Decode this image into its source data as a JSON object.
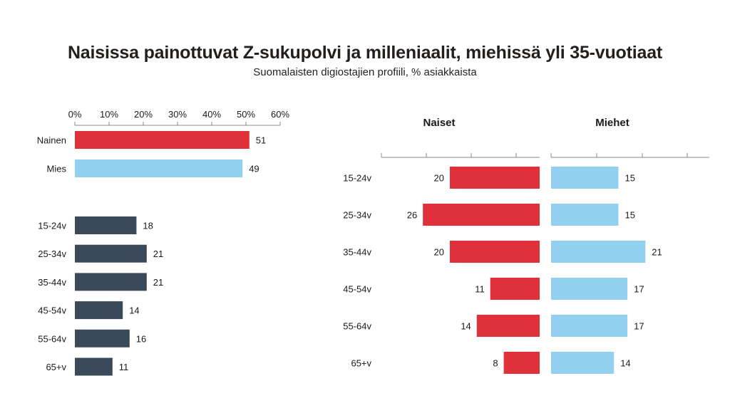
{
  "header": {
    "title": "Naisissa painottuvat Z-sukupolvi ja milleniaalit, miehissä yli 35-vuotiaat",
    "subtitle": "Suomalaisten digiostajien profiili, % asiakkaista"
  },
  "colors": {
    "red": "#e0303a",
    "lightblue": "#92d0f0",
    "dark": "#3a4a5a",
    "axis": "#888888"
  },
  "chart_data": [
    {
      "type": "bar",
      "orientation": "horizontal",
      "categories": [
        "Nainen",
        "Mies"
      ],
      "values": [
        51,
        49
      ],
      "colors": [
        "#e0303a",
        "#92d0f0"
      ],
      "xlim": [
        0,
        60
      ],
      "xticks": [
        "0%",
        "10%",
        "20%",
        "30%",
        "40%",
        "50%",
        "60%"
      ]
    },
    {
      "type": "bar",
      "orientation": "horizontal",
      "categories": [
        "15-24v",
        "25-34v",
        "35-44v",
        "45-54v",
        "55-64v",
        "65+v"
      ],
      "values": [
        18,
        21,
        21,
        14,
        16,
        11
      ],
      "color": "#3a4a5a",
      "xlim": [
        0,
        60
      ]
    },
    {
      "type": "bar",
      "orientation": "horizontal",
      "categories": [
        "15-24v",
        "25-34v",
        "35-44v",
        "45-54v",
        "55-64v",
        "65+v"
      ],
      "series": [
        {
          "name": "Naiset",
          "values": [
            20,
            26,
            20,
            11,
            14,
            8
          ],
          "color": "#e0303a"
        },
        {
          "name": "Miehet",
          "values": [
            15,
            15,
            21,
            17,
            17,
            14
          ],
          "color": "#92d0f0"
        }
      ]
    }
  ]
}
